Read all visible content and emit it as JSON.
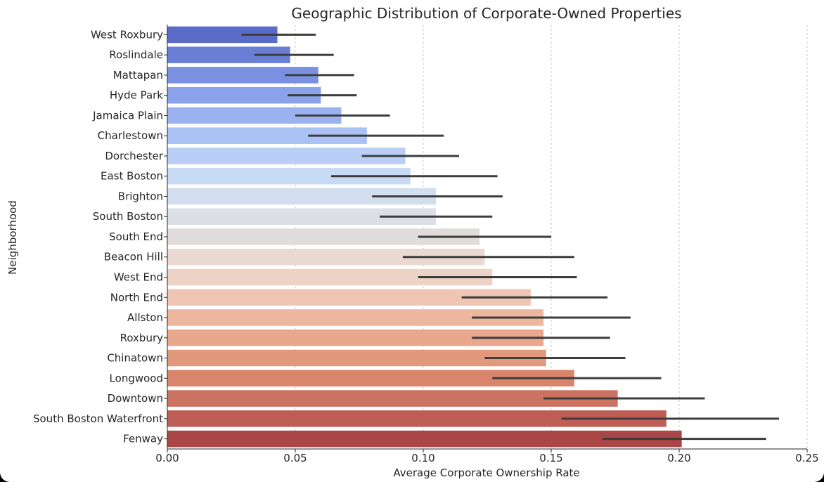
{
  "chart_data": {
    "type": "bar",
    "orientation": "horizontal",
    "title": "Geographic Distribution of Corporate-Owned Properties",
    "xlabel": "Average Corporate Ownership Rate",
    "ylabel": "Neighborhood",
    "xlim": [
      0,
      0.25
    ],
    "xticks": [
      "0.00",
      "0.05",
      "0.10",
      "0.15",
      "0.20",
      "0.25"
    ],
    "grid": "vertical dashed",
    "palette": "coolwarm",
    "categories": [
      "West Roxbury",
      "Roslindale",
      "Mattapan",
      "Hyde Park",
      "Jamaica Plain",
      "Charlestown",
      "Dorchester",
      "East Boston",
      "Brighton",
      "South Boston",
      "South End",
      "Beacon Hill",
      "West End",
      "North End",
      "Allston",
      "Roxbury",
      "Chinatown",
      "Longwood",
      "Downtown",
      "South Boston Waterfront",
      "Fenway"
    ],
    "values": [
      0.043,
      0.048,
      0.059,
      0.06,
      0.068,
      0.078,
      0.093,
      0.095,
      0.105,
      0.105,
      0.122,
      0.124,
      0.127,
      0.142,
      0.147,
      0.147,
      0.148,
      0.159,
      0.176,
      0.195,
      0.201
    ],
    "error_low": [
      0.029,
      0.034,
      0.046,
      0.047,
      0.05,
      0.055,
      0.076,
      0.064,
      0.08,
      0.083,
      0.098,
      0.092,
      0.098,
      0.115,
      0.119,
      0.119,
      0.124,
      0.127,
      0.147,
      0.154,
      0.17
    ],
    "error_high": [
      0.058,
      0.065,
      0.073,
      0.074,
      0.087,
      0.108,
      0.114,
      0.129,
      0.131,
      0.127,
      0.15,
      0.159,
      0.16,
      0.172,
      0.181,
      0.173,
      0.179,
      0.193,
      0.21,
      0.239,
      0.234
    ],
    "colors": [
      "#5a6bc8",
      "#6a7ed6",
      "#7a91e1",
      "#8aa3ea",
      "#9ab3f0",
      "#aac2f4",
      "#b9cff5",
      "#c7daf3",
      "#d2ddee",
      "#dcdfe5",
      "#e0dcdb",
      "#e9d9d0",
      "#ecd3c5",
      "#eec6b3",
      "#edb79f",
      "#e9a88d",
      "#e2987b",
      "#d9856b",
      "#cc7260",
      "#bd5d53",
      "#ab4646"
    ],
    "errorbar_color": "#3d3d3d"
  }
}
